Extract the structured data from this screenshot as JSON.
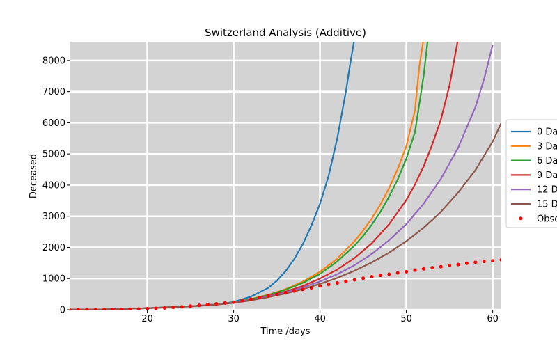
{
  "chart_data": {
    "type": "line",
    "title": "Switzerland Analysis (Additive)",
    "xlabel": "Time /days",
    "ylabel": "Deceased",
    "xlim": [
      11,
      61
    ],
    "ylim": [
      0,
      8600
    ],
    "xticks": [
      20,
      30,
      40,
      50,
      60
    ],
    "yticks": [
      0,
      1000,
      2000,
      3000,
      4000,
      5000,
      6000,
      7000,
      8000
    ],
    "grid": true,
    "legend_position": "right",
    "series": [
      {
        "name": "0 Da",
        "color": "#1f77b4",
        "style": "line",
        "x": [
          11,
          15,
          20,
          25,
          28,
          30,
          32,
          34,
          35,
          36,
          37,
          38,
          39,
          40,
          41,
          42,
          43,
          43.5,
          44
        ],
        "y": [
          0,
          10,
          50,
          110,
          170,
          250,
          420,
          700,
          930,
          1230,
          1620,
          2100,
          2700,
          3400,
          4300,
          5500,
          7000,
          7900,
          8700
        ]
      },
      {
        "name": "3 Da",
        "color": "#ff7f0e",
        "style": "line",
        "x": [
          11,
          15,
          20,
          25,
          28,
          30,
          32,
          34,
          36,
          38,
          40,
          42,
          44,
          45,
          46,
          47,
          48,
          49,
          50,
          51,
          51.5,
          52
        ],
        "y": [
          0,
          10,
          50,
          110,
          170,
          240,
          340,
          480,
          660,
          900,
          1220,
          1640,
          2200,
          2540,
          2930,
          3380,
          3900,
          4520,
          5250,
          6400,
          7800,
          8700
        ]
      },
      {
        "name": "6 Da",
        "color": "#2ca02c",
        "style": "line",
        "x": [
          11,
          15,
          20,
          25,
          28,
          30,
          32,
          34,
          36,
          38,
          40,
          42,
          44,
          45,
          46,
          47,
          48,
          49,
          50,
          51,
          52,
          52.5
        ],
        "y": [
          0,
          10,
          50,
          110,
          170,
          240,
          340,
          470,
          640,
          860,
          1150,
          1550,
          2060,
          2370,
          2730,
          3140,
          3630,
          4180,
          4850,
          5700,
          7500,
          8700
        ]
      },
      {
        "name": "9 Da",
        "color": "#d62728",
        "style": "line",
        "x": [
          11,
          15,
          20,
          25,
          28,
          30,
          32,
          34,
          36,
          38,
          40,
          42,
          44,
          46,
          48,
          50,
          51,
          52,
          53,
          54,
          55,
          56
        ],
        "y": [
          0,
          10,
          50,
          110,
          170,
          230,
          320,
          440,
          580,
          760,
          1000,
          1290,
          1660,
          2130,
          2740,
          3520,
          4020,
          4600,
          5300,
          6100,
          7200,
          8700
        ]
      },
      {
        "name": "12 D",
        "color": "#9467bd",
        "style": "line",
        "x": [
          11,
          15,
          20,
          25,
          28,
          30,
          32,
          34,
          36,
          38,
          40,
          42,
          44,
          46,
          48,
          50,
          52,
          54,
          56,
          58,
          59,
          60
        ],
        "y": [
          0,
          10,
          50,
          110,
          170,
          230,
          310,
          420,
          550,
          710,
          910,
          1140,
          1430,
          1790,
          2230,
          2750,
          3400,
          4200,
          5200,
          6500,
          7400,
          8500
        ]
      },
      {
        "name": "15 D",
        "color": "#8c564b",
        "style": "line",
        "x": [
          11,
          15,
          20,
          25,
          28,
          30,
          32,
          34,
          36,
          38,
          40,
          42,
          44,
          46,
          48,
          50,
          52,
          54,
          56,
          58,
          60,
          61
        ],
        "y": [
          0,
          10,
          50,
          110,
          160,
          220,
          300,
          400,
          520,
          660,
          830,
          1020,
          1250,
          1520,
          1830,
          2200,
          2630,
          3140,
          3760,
          4480,
          5400,
          6000
        ]
      },
      {
        "name": "Obse",
        "color": "#ff0000",
        "style": "points",
        "x": [
          11,
          12,
          13,
          14,
          15,
          16,
          17,
          18,
          19,
          20,
          21,
          22,
          23,
          24,
          25,
          26,
          27,
          28,
          29,
          30,
          31,
          32,
          33,
          34,
          35,
          36,
          37,
          38,
          39,
          40,
          41,
          42,
          43,
          44,
          45,
          46,
          47,
          48,
          49,
          50,
          51,
          52,
          53,
          54,
          55,
          56,
          57,
          58,
          59,
          60,
          61
        ],
        "y": [
          0,
          1,
          2,
          3,
          5,
          8,
          12,
          18,
          25,
          33,
          43,
          56,
          72,
          92,
          116,
          140,
          165,
          190,
          215,
          240,
          290,
          340,
          390,
          440,
          490,
          540,
          600,
          650,
          700,
          760,
          810,
          860,
          910,
          960,
          1010,
          1060,
          1100,
          1140,
          1180,
          1220,
          1270,
          1310,
          1350,
          1380,
          1420,
          1450,
          1490,
          1520,
          1550,
          1570,
          1600
        ]
      }
    ]
  }
}
